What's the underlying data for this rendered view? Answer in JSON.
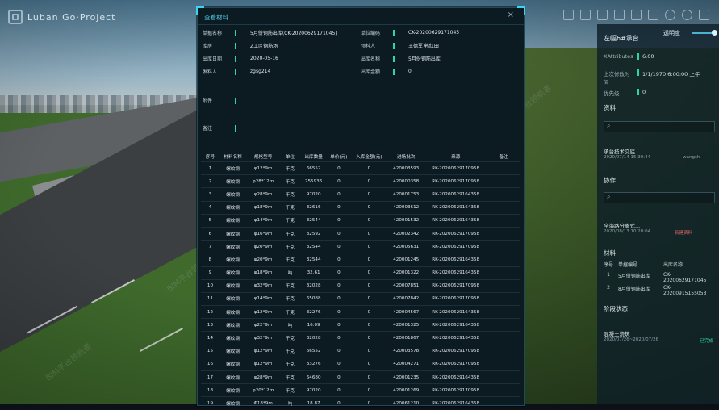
{
  "app": {
    "title": "Luban Go·Project"
  },
  "watermark": {
    "text": "BIM平台领航者"
  },
  "right_panel": {
    "title": "左幅6#承台",
    "opacity_label": "透明度",
    "props": [
      {
        "key": "XAttributes",
        "value": "6.00"
      },
      {
        "key": "上次修改时间",
        "value": "1/1/1970 6:00:00 上午"
      },
      {
        "key": "优先级",
        "value": "0"
      }
    ],
    "data_heading": "资料",
    "data_card": {
      "title": "承台技术交底...",
      "date": "2020/07/14 15:30:44",
      "user": "wangsh"
    },
    "collab_heading": "协作",
    "collab_card": {
      "title": "全海路分离式...",
      "date": "2020/08/13 10:20:04",
      "badge": "新建资料"
    },
    "materials_heading": "材料",
    "materials_headers": [
      "序号",
      "单据编号",
      "出库名称"
    ],
    "materials_rows": [
      [
        "1",
        "5月份钢筋出库",
        "CK-20200629171045"
      ],
      [
        "2",
        "8月份钢筋出库",
        "CK-20200915155053"
      ]
    ],
    "phase_heading": "阶段状态",
    "phase_card": {
      "title": "混凝土浇筑",
      "date": "2020/07/26~2020/07/26",
      "status": "已完成"
    }
  },
  "dialog": {
    "title": "查看材料",
    "close_label": "×",
    "fields": {
      "doc_name_label": "单据名称",
      "doc_name": "5月份钢筋出库(CK-20200629171045)",
      "doc_no_label": "单位编码",
      "doc_no": "CK-20200629171045",
      "warehouse_label": "库房",
      "warehouse": "Z工区钢筋场",
      "receiver_label": "领料人",
      "receiver": "王德军 韩红田",
      "date_label": "出库日期",
      "date": "2020-05-16",
      "outname_label": "出库名称",
      "outname": "5月份钢筋出库",
      "issuer_label": "发料人",
      "issuer": "zgsg214",
      "amount_label": "出库金额",
      "amount": "0",
      "attachment_label": "附件",
      "remark_label": "备注"
    },
    "table": {
      "headers": [
        "序号",
        "材料名称",
        "规格型号",
        "单位",
        "出库数量",
        "单价(元)",
        "入库金额(元)",
        "进场批次",
        "来源",
        "备注"
      ],
      "rows": [
        [
          "1",
          "螺纹钢",
          "φ12*9m",
          "千克",
          "66552",
          "0",
          "0",
          "420003593",
          "RK-20200629170958",
          ""
        ],
        [
          "2",
          "螺纹钢",
          "φ28*12m",
          "千克",
          "255936",
          "0",
          "0",
          "420000358",
          "RK-20200629170958",
          ""
        ],
        [
          "3",
          "螺纹钢",
          "φ28*9m",
          "千克",
          "97020",
          "0",
          "0",
          "420001753",
          "RK-20200629164358",
          ""
        ],
        [
          "4",
          "螺纹钢",
          "φ18*9m",
          "千克",
          "32616",
          "0",
          "0",
          "420003612",
          "RK-20200629164358",
          ""
        ],
        [
          "5",
          "螺纹钢",
          "φ14*9m",
          "千克",
          "32544",
          "0",
          "0",
          "420001532",
          "RK-20200629164358",
          ""
        ],
        [
          "6",
          "螺纹钢",
          "φ16*9m",
          "千克",
          "32592",
          "0",
          "0",
          "420002342",
          "RK-20200629170958",
          ""
        ],
        [
          "7",
          "螺纹钢",
          "φ20*9m",
          "千克",
          "32544",
          "0",
          "0",
          "420005631",
          "RK-20200629170958",
          ""
        ],
        [
          "8",
          "螺纹钢",
          "φ20*9m",
          "千克",
          "32544",
          "0",
          "0",
          "420001245",
          "RK-20200629164358",
          ""
        ],
        [
          "9",
          "螺纹钢",
          "φ18*9m",
          "吨",
          "32.61",
          "0",
          "0",
          "420001322",
          "RK-20200629164358",
          ""
        ],
        [
          "10",
          "螺纹钢",
          "φ32*9m",
          "千克",
          "32028",
          "0",
          "0",
          "420007851",
          "RK-20200629170958",
          ""
        ],
        [
          "11",
          "螺纹钢",
          "φ14*9m",
          "千克",
          "65088",
          "0",
          "0",
          "420007842",
          "RK-20200629170958",
          ""
        ],
        [
          "12",
          "螺纹钢",
          "φ12*9m",
          "千克",
          "32276",
          "0",
          "0",
          "420004567",
          "RK-20200629164358",
          ""
        ],
        [
          "13",
          "螺纹钢",
          "φ22*9m",
          "吨",
          "16.09",
          "0",
          "0",
          "420001325",
          "RK-20200629164358",
          ""
        ],
        [
          "14",
          "螺纹钢",
          "φ32*9m",
          "千克",
          "32028",
          "0",
          "0",
          "420001867",
          "RK-20200629164358",
          ""
        ],
        [
          "15",
          "螺纹钢",
          "φ12*9m",
          "千克",
          "66552",
          "0",
          "0",
          "420003578",
          "RK-20200629170958",
          ""
        ],
        [
          "16",
          "螺纹钢",
          "φ12*9m",
          "千克",
          "33276",
          "0",
          "0",
          "420004271",
          "RK-20200629170958",
          ""
        ],
        [
          "17",
          "螺纹钢",
          "φ28*9m",
          "千克",
          "64680",
          "0",
          "0",
          "420001235",
          "RK-20200629164358",
          ""
        ],
        [
          "18",
          "螺纹钢",
          "φ20*12m",
          "千克",
          "97020",
          "0",
          "0",
          "420001269",
          "RK-20200629170958",
          ""
        ],
        [
          "19",
          "螺纹钢",
          "Φ18*9m",
          "吨",
          "18.87",
          "0",
          "0",
          "420061210",
          "RK-20200629164358",
          ""
        ]
      ]
    }
  }
}
